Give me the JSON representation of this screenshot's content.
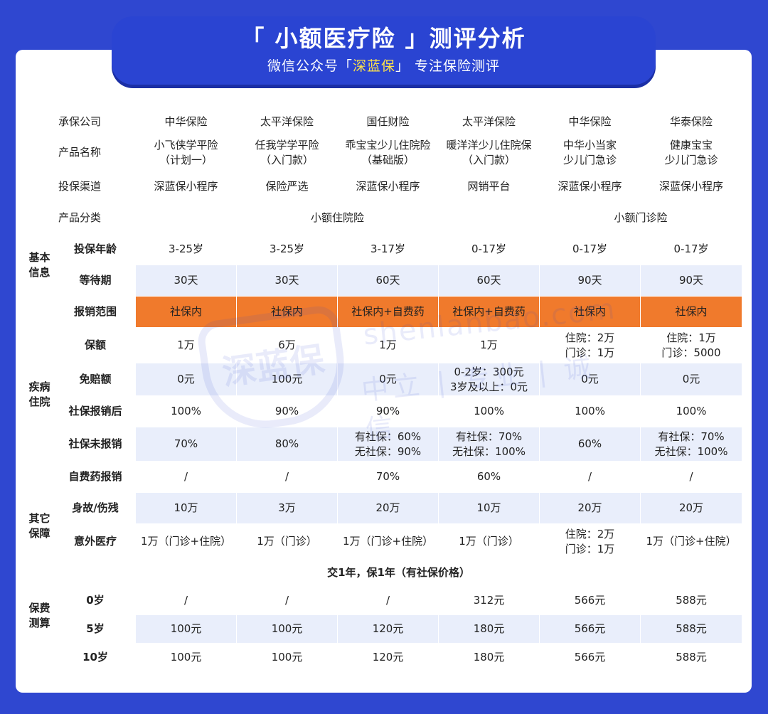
{
  "header": {
    "title": "「 小额医疗险 」测评分析",
    "subtitle_pre": "微信公众号「",
    "subtitle_brand": "深蓝保",
    "subtitle_post": "」 专注保险测评"
  },
  "watermark": {
    "shield_text": "深蓝保",
    "domain": "shenlanbao.com",
    "slogan": "中立 | 专业 | 诚信"
  },
  "table": {
    "companies_label": "承保公司",
    "companies": [
      "中华保险",
      "太平洋保险",
      "国任财险",
      "太平洋保险",
      "中华保险",
      "华泰保险"
    ],
    "product_label": "产品名称",
    "products": [
      "小飞侠学平险\n（计划一）",
      "任我学学平险\n（入门款）",
      "乖宝宝少儿住院险\n（基础版）",
      "暖洋洋少儿住院保\n（入门款）",
      "中华小当家\n少儿门急诊",
      "健康宝宝\n少儿门急诊"
    ],
    "channel_label": "投保渠道",
    "channels": [
      "深蓝保小程序",
      "保险严选",
      "深蓝保小程序",
      "网销平台",
      "深蓝保小程序",
      "深蓝保小程序"
    ],
    "category_label": "产品分类",
    "category_a": "小额住院险",
    "category_b": "小额门诊险",
    "basic_group": "基本\n信息",
    "age_label": "投保年龄",
    "ages": [
      "3-25岁",
      "3-25岁",
      "3-17岁",
      "0-17岁",
      "0-17岁",
      "0-17岁"
    ],
    "wait_label": "等待期",
    "waits": [
      "30天",
      "30天",
      "60天",
      "60天",
      "90天",
      "90天"
    ],
    "disease_group": "疾病\n住院",
    "scope_label": "报销范围",
    "scopes": [
      "社保内",
      "社保内",
      "社保内+自费药",
      "社保内+自费药",
      "社保内",
      "社保内"
    ],
    "amount_label": "保额",
    "amounts": [
      "1万",
      "6万",
      "1万",
      "1万",
      "住院：2万\n门诊：1万",
      "住院：1万\n门诊：5000"
    ],
    "deduct_label": "免赔额",
    "deducts": [
      "0元",
      "100元",
      "0元",
      "0-2岁：300元\n3岁及以上：0元",
      "0元",
      "0元"
    ],
    "after_label": "社保报销后",
    "afters": [
      "100%",
      "90%",
      "90%",
      "100%",
      "100%",
      "100%"
    ],
    "none_label": "社保未报销",
    "nones": [
      "70%",
      "80%",
      "有社保：60%\n无社保：90%",
      "有社保：70%\n无社保：100%",
      "60%",
      "有社保：70%\n无社保：100%"
    ],
    "self_label": "自费药报销",
    "selfs": [
      "/",
      "/",
      "70%",
      "60%",
      "/",
      "/"
    ],
    "other_group": "其它\n保障",
    "death_label": "身故/伤残",
    "deaths": [
      "10万",
      "3万",
      "20万",
      "10万",
      "20万",
      "20万"
    ],
    "acc_label": "意外医疗",
    "accs": [
      "1万（门诊+住院）",
      "1万（门诊）",
      "1万（门诊+住院）",
      "1万（门诊）",
      "住院：2万\n门诊：1万",
      "1万（门诊+住院）"
    ],
    "fee_group": "保费\n测算",
    "fee_banner": "交1年，保1年（有社保价格）",
    "fee_rows": [
      {
        "label": "0岁",
        "values": [
          "/",
          "/",
          "/",
          "312元",
          "566元",
          "588元"
        ]
      },
      {
        "label": "5岁",
        "values": [
          "100元",
          "100元",
          "120元",
          "180元",
          "566元",
          "588元"
        ]
      },
      {
        "label": "10岁",
        "values": [
          "100元",
          "100元",
          "120元",
          "180元",
          "566元",
          "588元"
        ]
      }
    ]
  },
  "colors": {
    "background": "#2f47d0",
    "header_cell": "#2944c8",
    "accent_yellow": "#ffe34a",
    "scope_orange": "#f07a2c",
    "row_alt": "#e9eefb"
  }
}
